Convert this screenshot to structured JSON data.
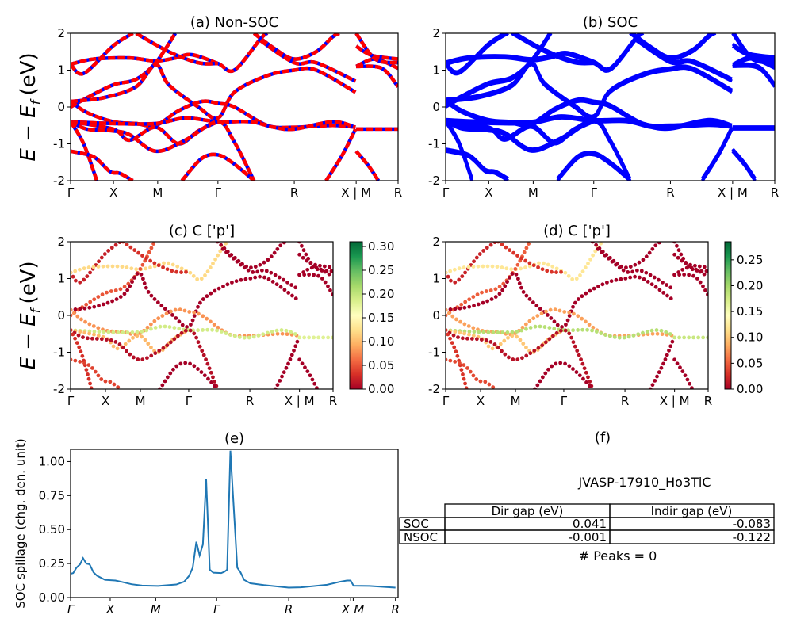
{
  "chart_data": [
    {
      "type": "line",
      "title": "(a) Non-SOC",
      "ylabel": {
        "main": "E − E",
        "sub": "f",
        "unit": "(eV)"
      },
      "ylim": [
        -2,
        2
      ],
      "yticks": [
        "-2",
        "-1",
        "0",
        "1",
        "2"
      ],
      "xticks": [
        {
          "label": "Γ",
          "k": 0
        },
        {
          "label": "X",
          "k": 0.131
        },
        {
          "label": "M",
          "k": 0.266
        },
        {
          "label": "Γ",
          "k": 0.45
        },
        {
          "label": "R",
          "k": 0.683
        },
        {
          "label": "X | M",
          "k": 0.872
        },
        {
          "label": "R",
          "k": 1
        }
      ],
      "colors": {
        "under": "#0000ff",
        "dash": "#ff0000"
      },
      "style": "dashed-red-over-blue"
    },
    {
      "type": "line",
      "title": "(b) SOC",
      "ylim": [
        -2,
        2
      ],
      "yticks": [
        "-2",
        "-1",
        "0",
        "1",
        "2"
      ],
      "xticks": [
        {
          "label": "Γ",
          "k": 0
        },
        {
          "label": "X",
          "k": 0.131
        },
        {
          "label": "M",
          "k": 0.266
        },
        {
          "label": "Γ",
          "k": 0.45
        },
        {
          "label": "R",
          "k": 0.683
        },
        {
          "label": "X | M",
          "k": 0.872
        },
        {
          "label": "R",
          "k": 1
        }
      ],
      "colors": {
        "line": "#0000ff"
      },
      "style": "solid-blue"
    },
    {
      "type": "scatter",
      "title": "(c)  C ['p']",
      "ylabel": {
        "main": "E − E",
        "sub": "f",
        "unit": "(eV)"
      },
      "ylim": [
        -2,
        2
      ],
      "yticks": [
        "-2",
        "-1",
        "0",
        "1",
        "2"
      ],
      "xticks": [
        {
          "label": "Γ",
          "k": 0
        },
        {
          "label": "X",
          "k": 0.133
        },
        {
          "label": "M",
          "k": 0.266
        },
        {
          "label": "Γ",
          "k": 0.45
        },
        {
          "label": "R",
          "k": 0.683
        },
        {
          "label": "X | M",
          "k": 0.872
        },
        {
          "label": "R",
          "k": 1
        }
      ],
      "colormap": "RdYlGn",
      "clim": [
        0,
        0.31
      ],
      "colorbar_ticks": [
        "0.00",
        "0.05",
        "0.10",
        "0.15",
        "0.20",
        "0.25",
        "0.30"
      ]
    },
    {
      "type": "scatter",
      "title": "(d) C ['p']",
      "ylim": [
        -2,
        2
      ],
      "yticks": [
        "-2",
        "-1",
        "0",
        "1",
        "2"
      ],
      "xticks": [
        {
          "label": "Γ",
          "k": 0
        },
        {
          "label": "X",
          "k": 0.133
        },
        {
          "label": "M",
          "k": 0.266
        },
        {
          "label": "Γ",
          "k": 0.45
        },
        {
          "label": "R",
          "k": 0.683
        },
        {
          "label": "X | M",
          "k": 0.872
        },
        {
          "label": "R",
          "k": 1
        }
      ],
      "colormap": "RdYlGn",
      "clim": [
        0,
        0.285
      ],
      "colorbar_ticks": [
        "0.00",
        "0.05",
        "0.10",
        "0.15",
        "0.20",
        "0.25"
      ]
    },
    {
      "type": "line",
      "title": "(e)",
      "ylabel": "SOC spillage (chg. den. unit)",
      "ylim": [
        0,
        1.09
      ],
      "yticks": [
        "0.00",
        "0.25",
        "0.50",
        "0.75",
        "1.00"
      ],
      "xticks": [
        {
          "label": "Γ",
          "k": 0
        },
        {
          "label": "X",
          "k": 0.121
        },
        {
          "label": "M",
          "k": 0.26
        },
        {
          "label": "Γ",
          "k": 0.446
        },
        {
          "label": "R",
          "k": 0.666
        },
        {
          "label": "X",
          "k": 0.855
        },
        {
          "label": "M",
          "k": 0.863
        },
        {
          "label": "R",
          "k": 0.992
        }
      ],
      "color": "#1f77b4",
      "x": [
        0,
        0.008,
        0.018,
        0.029,
        0.038,
        0.048,
        0.058,
        0.07,
        0.081,
        0.105,
        0.137,
        0.153,
        0.186,
        0.218,
        0.267,
        0.323,
        0.347,
        0.362,
        0.373,
        0.384,
        0.394,
        0.404,
        0.414,
        0.425,
        0.436,
        0.46,
        0.47,
        0.478,
        0.488,
        0.509,
        0.519,
        0.53,
        0.549,
        0.59,
        0.666,
        0.703,
        0.783,
        0.824,
        0.844,
        0.855,
        0.864,
        0.913,
        0.992
      ],
      "y": [
        0.175,
        0.18,
        0.22,
        0.245,
        0.29,
        0.25,
        0.245,
        0.185,
        0.16,
        0.13,
        0.125,
        0.117,
        0.098,
        0.088,
        0.085,
        0.096,
        0.117,
        0.16,
        0.22,
        0.41,
        0.31,
        0.39,
        0.87,
        0.205,
        0.183,
        0.18,
        0.19,
        0.205,
        1.08,
        0.22,
        0.185,
        0.13,
        0.105,
        0.092,
        0.073,
        0.075,
        0.094,
        0.117,
        0.125,
        0.125,
        0.087,
        0.085,
        0.073
      ]
    }
  ],
  "bands": [
    {
      "c": 0.02,
      "pts": [
        [
          0,
          1.16
        ],
        [
          0.04,
          0.91
        ],
        [
          0.13,
          1.66
        ],
        [
          0.19,
          2.0
        ]
      ]
    },
    {
      "c": 0.12,
      "pts": [
        [
          0,
          1.16
        ],
        [
          0.07,
          1.3
        ],
        [
          0.18,
          1.33
        ],
        [
          0.26,
          1.25
        ],
        [
          0.32,
          1.33
        ],
        [
          0.37,
          1.42
        ],
        [
          0.45,
          1.18
        ],
        [
          0.5,
          1.0
        ],
        [
          0.58,
          1.85
        ],
        [
          0.6,
          2.0
        ]
      ]
    },
    {
      "c": 0.05,
      "pts": [
        [
          0,
          0.0
        ],
        [
          0.05,
          0.25
        ],
        [
          0.13,
          0.6
        ],
        [
          0.2,
          0.75
        ],
        [
          0.26,
          1.2
        ],
        [
          0.32,
          2.0
        ]
      ]
    },
    {
      "c": 0.0,
      "pts": [
        [
          0,
          0.15
        ],
        [
          0.1,
          0.25
        ],
        [
          0.2,
          0.55
        ],
        [
          0.26,
          1.15
        ],
        [
          0.3,
          0.6
        ],
        [
          0.39,
          0.0
        ],
        [
          0.45,
          -0.3
        ],
        [
          0.5,
          0.4
        ],
        [
          0.6,
          0.85
        ],
        [
          0.683,
          1.0
        ],
        [
          0.75,
          1.0
        ],
        [
          0.87,
          0.4
        ]
      ]
    },
    {
      "c": 0.08,
      "pts": [
        [
          0,
          0.15
        ],
        [
          0.05,
          -0.15
        ],
        [
          0.13,
          -0.4
        ],
        [
          0.2,
          -0.45
        ],
        [
          0.26,
          -0.5
        ],
        [
          0.33,
          -0.1
        ],
        [
          0.4,
          0.15
        ],
        [
          0.45,
          0.1
        ],
        [
          0.5,
          0.0
        ],
        [
          0.6,
          -0.5
        ],
        [
          0.683,
          -0.55
        ],
        [
          0.8,
          -0.5
        ],
        [
          0.87,
          -0.55
        ]
      ]
    },
    {
      "c": 0.19,
      "pts": [
        [
          0,
          -0.4
        ],
        [
          0.13,
          -0.45
        ],
        [
          0.26,
          -0.45
        ],
        [
          0.35,
          -0.3
        ],
        [
          0.45,
          -0.4
        ],
        [
          0.55,
          -0.4
        ],
        [
          0.62,
          -0.55
        ],
        [
          0.683,
          -0.6
        ],
        [
          0.8,
          -0.4
        ],
        [
          0.87,
          -0.55
        ]
      ]
    },
    {
      "c": 0.1,
      "pts": [
        [
          0,
          -0.4
        ],
        [
          0.13,
          -0.6
        ],
        [
          0.18,
          -0.9
        ],
        [
          0.26,
          -0.55
        ],
        [
          0.33,
          -1.0
        ],
        [
          0.39,
          -0.65
        ],
        [
          0.45,
          -0.4
        ]
      ]
    },
    {
      "c": 0.01,
      "pts": [
        [
          0,
          -0.4
        ],
        [
          0.05,
          -0.6
        ],
        [
          0.13,
          -0.65
        ],
        [
          0.18,
          -0.75
        ],
        [
          0.26,
          -1.2
        ],
        [
          0.35,
          -0.9
        ],
        [
          0.45,
          -0.4
        ],
        [
          0.5,
          -0.95
        ],
        [
          0.56,
          -2.0
        ]
      ]
    },
    {
      "c": 0.03,
      "pts": [
        [
          0,
          -0.4
        ],
        [
          0.04,
          -1.0
        ],
        [
          0.08,
          -2.0
        ]
      ]
    },
    {
      "c": 0.04,
      "pts": [
        [
          0,
          -1.2
        ],
        [
          0.07,
          -1.35
        ],
        [
          0.12,
          -1.75
        ],
        [
          0.15,
          -1.8
        ],
        [
          0.19,
          -2.0
        ]
      ]
    },
    {
      "c": 0.0,
      "pts": [
        [
          0.34,
          -2.0
        ],
        [
          0.4,
          -1.4
        ],
        [
          0.45,
          -1.3
        ],
        [
          0.5,
          -1.55
        ],
        [
          0.56,
          -2.0
        ]
      ]
    },
    {
      "c": 0.0,
      "pts": [
        [
          0.56,
          2.0
        ],
        [
          0.62,
          1.6
        ],
        [
          0.683,
          1.3
        ],
        [
          0.75,
          1.5
        ],
        [
          0.8,
          1.9
        ],
        [
          0.82,
          2.0
        ]
      ]
    },
    {
      "c": 0.0,
      "pts": [
        [
          0.58,
          1.8
        ],
        [
          0.683,
          1.2
        ],
        [
          0.75,
          1.2
        ],
        [
          0.87,
          0.7
        ]
      ]
    },
    {
      "c": 0.0,
      "pts": [
        [
          0.78,
          -2.0
        ],
        [
          0.83,
          -1.3
        ],
        [
          0.87,
          -0.6
        ]
      ]
    },
    {
      "c": 0.03,
      "pts": [
        [
          0.2,
          2.0
        ],
        [
          0.3,
          1.5
        ],
        [
          0.39,
          1.2
        ],
        [
          0.45,
          1.18
        ]
      ]
    },
    {
      "c": 0.0,
      "pts": [
        [
          0.872,
          1.1
        ],
        [
          0.93,
          1.3
        ],
        [
          1,
          1.05
        ]
      ]
    },
    {
      "c": 0.0,
      "pts": [
        [
          0.872,
          1.1
        ],
        [
          0.95,
          1.05
        ],
        [
          1,
          0.55
        ]
      ]
    },
    {
      "c": 0.18,
      "pts": [
        [
          0.872,
          -0.6
        ],
        [
          1,
          -0.6
        ]
      ]
    },
    {
      "c": 0.0,
      "pts": [
        [
          0.872,
          -1.2
        ],
        [
          0.91,
          -1.6
        ],
        [
          0.94,
          -2.0
        ]
      ]
    },
    {
      "c": 0.0,
      "pts": [
        [
          0.872,
          1.65
        ],
        [
          0.92,
          1.4
        ],
        [
          1,
          1.3
        ]
      ]
    },
    {
      "c": 0.0,
      "pts": [
        [
          0.872,
          2.0
        ],
        [
          0.93,
          1.3
        ],
        [
          1,
          1.2
        ]
      ]
    }
  ],
  "panel_f": {
    "title": "(f)",
    "material": "JVASP-17910_Ho3TlC",
    "table": {
      "columns": [
        "Dir gap (eV)",
        "Indir gap (eV)"
      ],
      "rows": [
        {
          "label": "SOC",
          "values": [
            "0.041",
            "-0.083"
          ]
        },
        {
          "label": "NSOC",
          "values": [
            "-0.001",
            "-0.122"
          ]
        }
      ]
    },
    "peaks": "# Peaks = 0"
  }
}
